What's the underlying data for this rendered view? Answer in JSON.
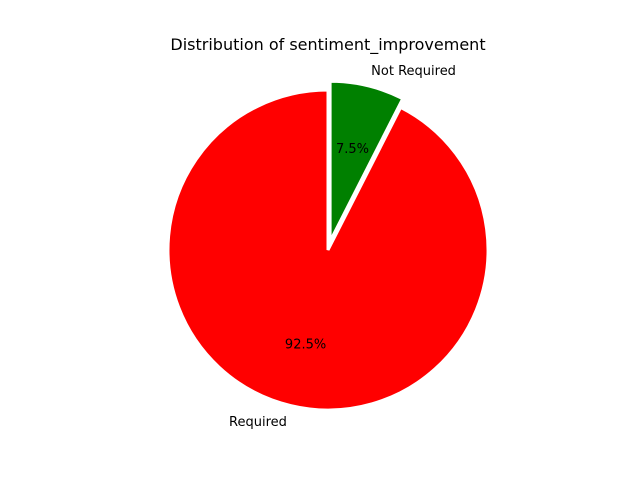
{
  "chart_data": {
    "type": "pie",
    "title": "Distribution of sentiment_improvement",
    "slices": [
      {
        "label": "Not Required",
        "percent_label": "7.5%",
        "value": 7.5,
        "color": "#008000",
        "exploded": true
      },
      {
        "label": "Required",
        "percent_label": "92.5%",
        "value": 92.5,
        "color": "#ff0000",
        "exploded": false
      }
    ],
    "start_angle_deg": 90,
    "direction": "clockwise",
    "edge_color": "#ffffff"
  }
}
